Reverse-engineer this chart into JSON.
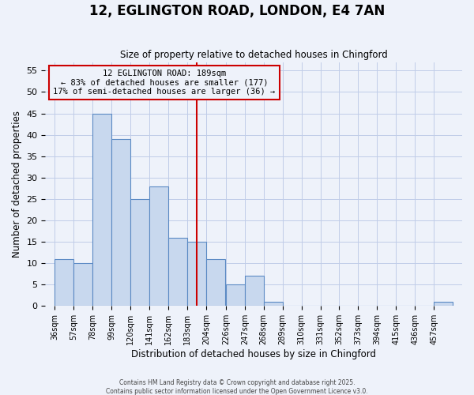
{
  "title": "12, EGLINGTON ROAD, LONDON, E4 7AN",
  "subtitle": "Size of property relative to detached houses in Chingford",
  "xlabel": "Distribution of detached houses by size in Chingford",
  "ylabel": "Number of detached properties",
  "bar_values": [
    11,
    10,
    45,
    39,
    25,
    28,
    16,
    15,
    11,
    5,
    7,
    1,
    0,
    0,
    0,
    0,
    0,
    0,
    0,
    0,
    1
  ],
  "bin_labels": [
    "36sqm",
    "57sqm",
    "78sqm",
    "99sqm",
    "120sqm",
    "141sqm",
    "162sqm",
    "183sqm",
    "204sqm",
    "226sqm",
    "247sqm",
    "268sqm",
    "289sqm",
    "310sqm",
    "331sqm",
    "352sqm",
    "373sqm",
    "394sqm",
    "415sqm",
    "436sqm",
    "457sqm"
  ],
  "bin_starts": [
    36,
    57,
    78,
    99,
    120,
    141,
    162,
    183,
    204,
    226,
    247,
    268,
    289,
    310,
    331,
    352,
    373,
    394,
    415,
    436,
    457
  ],
  "bin_width": 21,
  "bar_color": "#c8d8ee",
  "bar_edge_color": "#5b8ac4",
  "vline_x": 183,
  "vline_color": "#cc0000",
  "annotation_title": "12 EGLINGTON ROAD: 189sqm",
  "annotation_line1": "← 83% of detached houses are smaller (177)",
  "annotation_line2": "17% of semi-detached houses are larger (36) →",
  "annotation_box_color": "#cc0000",
  "annotation_box_facecolor": "#eef2fa",
  "ylim": [
    0,
    57
  ],
  "yticks": [
    0,
    5,
    10,
    15,
    20,
    25,
    30,
    35,
    40,
    45,
    50,
    55
  ],
  "footer1": "Contains HM Land Registry data © Crown copyright and database right 2025.",
  "footer2": "Contains public sector information licensed under the Open Government Licence v3.0.",
  "bg_color": "#eef2fa",
  "grid_color": "#c0cce8"
}
